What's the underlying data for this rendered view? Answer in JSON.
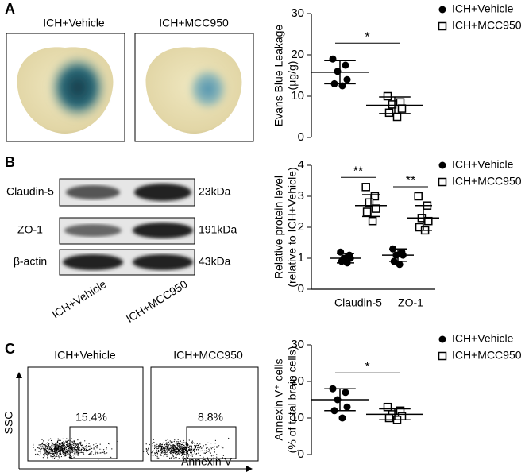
{
  "letters": [
    "A",
    "B",
    "C"
  ],
  "evans_blue": {
    "labels": [
      "ICH+Vehicle",
      "ICH+MCC950"
    ]
  },
  "western_blot": {
    "rows": [
      {
        "protein": "Claudin-5",
        "size": "23kDa"
      },
      {
        "protein": "ZO-1",
        "size": "191kDa"
      },
      {
        "protein": "β-actin",
        "size": "43kDa"
      }
    ],
    "groups": [
      "ICH+Vehicle",
      "ICH+MCC950"
    ]
  },
  "flow_cytometry": {
    "groups": [
      {
        "label": "ICH+Vehicle",
        "gate": "15.4%"
      },
      {
        "label": "ICH+MCC950",
        "gate": "8.8%"
      }
    ],
    "y_axis": "SSC",
    "x_axis": "Annexin V"
  },
  "chart_data": [
    {
      "type": "dot",
      "ylabel": [
        "Evans  Blue  Leakage",
        "(μg/g)"
      ],
      "ylim": [
        0,
        30
      ],
      "yticks": [
        0,
        10,
        20,
        30
      ],
      "significance": "*",
      "series": [
        {
          "name": "ICH+Vehicle",
          "color": "#000000",
          "marker": "circle",
          "values": [
            19,
            17.5,
            16,
            14,
            13,
            12.5
          ],
          "mean": 15.8,
          "sd": 2.8
        },
        {
          "name": "ICH+MCC950",
          "color": "#000000",
          "marker": "square",
          "values": [
            10,
            8.5,
            8,
            7,
            6,
            5
          ],
          "mean": 7.8,
          "sd": 2
        }
      ]
    },
    {
      "type": "dot",
      "ylabel": [
        "Relative protein level",
        "(relative to ICH+Vehicle)"
      ],
      "ylim": [
        0,
        4
      ],
      "yticks": [
        0,
        1,
        2,
        3,
        4
      ],
      "categories": [
        "Claudin-5",
        "ZO-1"
      ],
      "significance": [
        "**",
        "**"
      ],
      "series": [
        {
          "name": "ICH+Vehicle",
          "color": "#000000",
          "marker": "circle",
          "values": [
            [
              1.2,
              1.1,
              1.0,
              1.0,
              0.9,
              0.85
            ],
            [
              1.3,
              1.2,
              1.1,
              1.1,
              0.9,
              0.8
            ]
          ],
          "mean": [
            1.0,
            1.1
          ],
          "sd": [
            0.15,
            0.2
          ]
        },
        {
          "name": "ICH+MCC950",
          "color": "#000000",
          "marker": "square",
          "values": [
            [
              3.3,
              3.0,
              2.8,
              2.6,
              2.5,
              2.2
            ],
            [
              3.0,
              2.7,
              2.3,
              2.2,
              2.0,
              1.9
            ]
          ],
          "mean": [
            2.7,
            2.3
          ],
          "sd": [
            0.35,
            0.4
          ]
        }
      ]
    },
    {
      "type": "dot",
      "ylabel": [
        "Annexin V⁺ cells",
        "(% of total brain cells)"
      ],
      "ylim": [
        0,
        30
      ],
      "yticks": [
        0,
        10,
        20,
        30
      ],
      "significance": "*",
      "series": [
        {
          "name": "ICH+Vehicle",
          "color": "#000000",
          "marker": "circle",
          "values": [
            18,
            17,
            15,
            13,
            12,
            10
          ],
          "mean": 15,
          "sd": 3
        },
        {
          "name": "ICH+MCC950",
          "color": "#000000",
          "marker": "square",
          "values": [
            13,
            12,
            11,
            10.5,
            10,
            9.5
          ],
          "mean": 11,
          "sd": 1.5
        }
      ]
    }
  ]
}
